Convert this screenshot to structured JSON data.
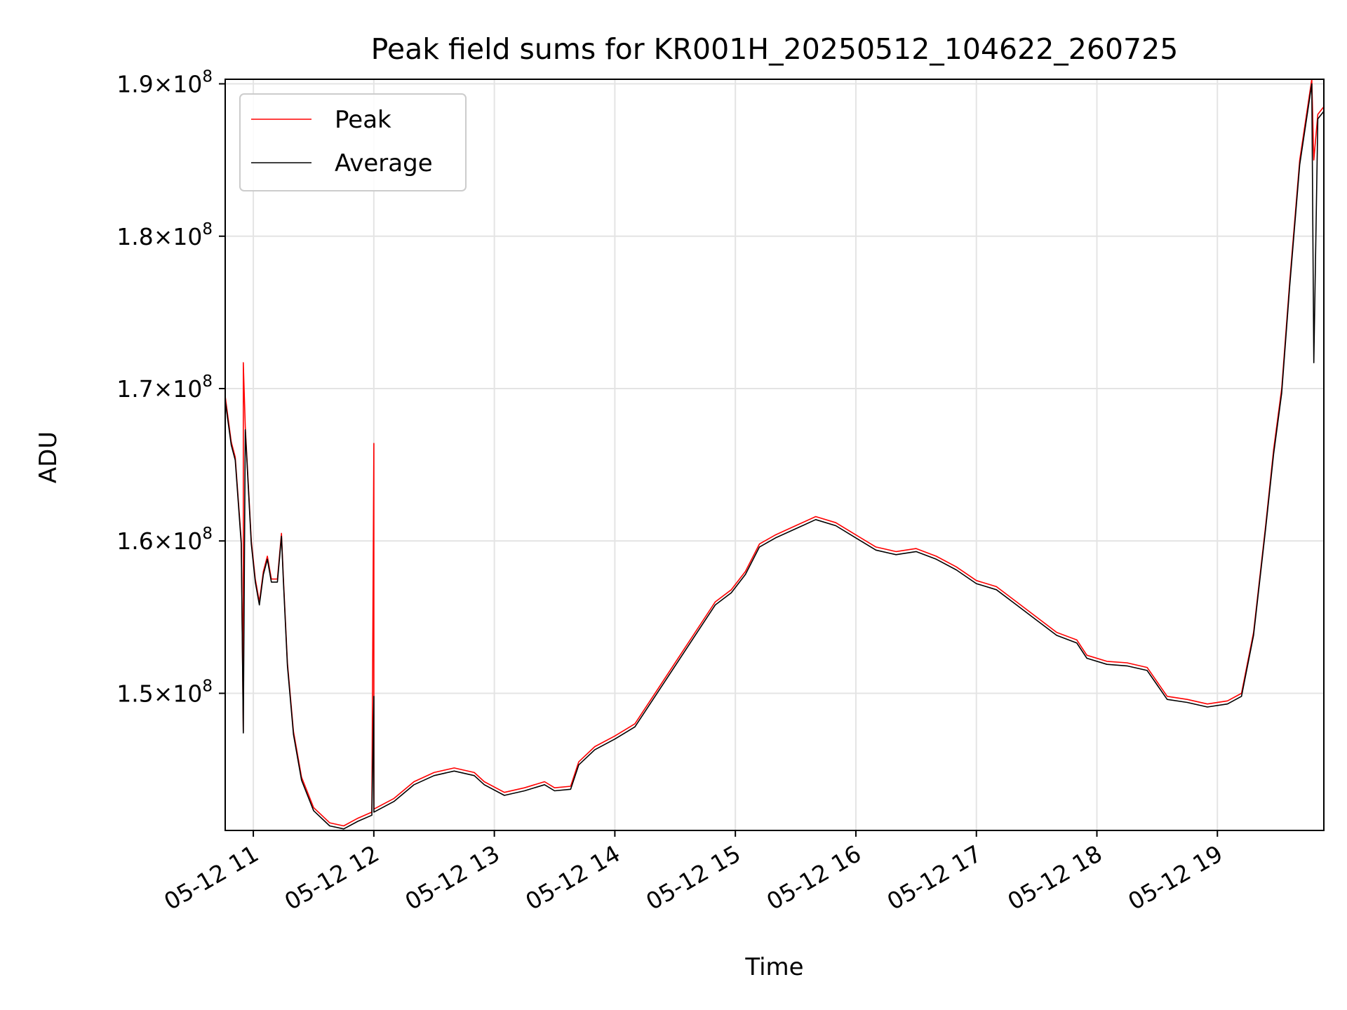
{
  "chart_data": {
    "type": "line",
    "title": "Peak field sums for KR001H_20250512_104622_260725",
    "xlabel": "Time",
    "ylabel": "ADU",
    "x_range": [
      "2025-05-12 10:46",
      "2025-05-12 19:53"
    ],
    "ylim": [
      141000000,
      190300000
    ],
    "grid": true,
    "legend_placement": "top-left",
    "x_ticks": [
      {
        "time": "2025-05-12 11:00",
        "label": "05-12 11"
      },
      {
        "time": "2025-05-12 12:00",
        "label": "05-12 12"
      },
      {
        "time": "2025-05-12 13:00",
        "label": "05-12 13"
      },
      {
        "time": "2025-05-12 14:00",
        "label": "05-12 14"
      },
      {
        "time": "2025-05-12 15:00",
        "label": "05-12 15"
      },
      {
        "time": "2025-05-12 16:00",
        "label": "05-12 16"
      },
      {
        "time": "2025-05-12 17:00",
        "label": "05-12 17"
      },
      {
        "time": "2025-05-12 18:00",
        "label": "05-12 18"
      },
      {
        "time": "2025-05-12 19:00",
        "label": "05-12 19"
      }
    ],
    "y_ticks": [
      {
        "value": 150000000,
        "mantissa": "1.5",
        "base": "×10",
        "exp": "8"
      },
      {
        "value": 160000000,
        "mantissa": "1.6",
        "base": "×10",
        "exp": "8"
      },
      {
        "value": 170000000,
        "mantissa": "1.7",
        "base": "×10",
        "exp": "8"
      },
      {
        "value": 180000000,
        "mantissa": "1.8",
        "base": "×10",
        "exp": "8"
      },
      {
        "value": 190000000,
        "mantissa": "1.9",
        "base": "×10",
        "exp": "8"
      }
    ],
    "series": [
      {
        "name": "Peak",
        "color": "#ff0000",
        "points": [
          [
            "2025-05-12 10:46",
            169500000
          ],
          [
            "2025-05-12 10:49",
            166500000
          ],
          [
            "2025-05-12 10:51",
            165500000
          ],
          [
            "2025-05-12 10:54",
            160000000
          ],
          [
            "2025-05-12 10:55",
            147500000
          ],
          [
            "2025-05-12 10:55",
            171700000
          ],
          [
            "2025-05-12 10:56",
            167500000
          ],
          [
            "2025-05-12 10:59",
            160000000
          ],
          [
            "2025-05-12 11:01",
            157500000
          ],
          [
            "2025-05-12 11:03",
            156000000
          ],
          [
            "2025-05-12 11:05",
            158000000
          ],
          [
            "2025-05-12 11:07",
            159000000
          ],
          [
            "2025-05-12 11:09",
            157500000
          ],
          [
            "2025-05-12 11:12",
            157500000
          ],
          [
            "2025-05-12 11:14",
            160500000
          ],
          [
            "2025-05-12 11:15",
            157500000
          ],
          [
            "2025-05-12 11:17",
            152000000
          ],
          [
            "2025-05-12 11:20",
            147500000
          ],
          [
            "2025-05-12 11:24",
            144500000
          ],
          [
            "2025-05-12 11:30",
            142500000
          ],
          [
            "2025-05-12 11:38",
            141500000
          ],
          [
            "2025-05-12 11:45",
            141300000
          ],
          [
            "2025-05-12 11:52",
            141800000
          ],
          [
            "2025-05-12 11:59",
            142200000
          ],
          [
            "2025-05-12 12:00",
            166400000
          ],
          [
            "2025-05-12 12:00",
            142400000
          ],
          [
            "2025-05-12 12:10",
            143100000
          ],
          [
            "2025-05-12 12:20",
            144200000
          ],
          [
            "2025-05-12 12:30",
            144800000
          ],
          [
            "2025-05-12 12:40",
            145100000
          ],
          [
            "2025-05-12 12:50",
            144800000
          ],
          [
            "2025-05-12 12:55",
            144200000
          ],
          [
            "2025-05-12 13:05",
            143500000
          ],
          [
            "2025-05-12 13:15",
            143800000
          ],
          [
            "2025-05-12 13:25",
            144200000
          ],
          [
            "2025-05-12 13:30",
            143800000
          ],
          [
            "2025-05-12 13:38",
            143900000
          ],
          [
            "2025-05-12 13:42",
            145500000
          ],
          [
            "2025-05-12 13:50",
            146500000
          ],
          [
            "2025-05-12 14:00",
            147200000
          ],
          [
            "2025-05-12 14:10",
            148000000
          ],
          [
            "2025-05-12 14:20",
            150000000
          ],
          [
            "2025-05-12 14:30",
            152000000
          ],
          [
            "2025-05-12 14:40",
            154000000
          ],
          [
            "2025-05-12 14:50",
            156000000
          ],
          [
            "2025-05-12 14:58",
            156800000
          ],
          [
            "2025-05-12 15:05",
            158000000
          ],
          [
            "2025-05-12 15:12",
            159800000
          ],
          [
            "2025-05-12 15:20",
            160400000
          ],
          [
            "2025-05-12 15:30",
            161000000
          ],
          [
            "2025-05-12 15:40",
            161600000
          ],
          [
            "2025-05-12 15:50",
            161200000
          ],
          [
            "2025-05-12 16:00",
            160400000
          ],
          [
            "2025-05-12 16:10",
            159600000
          ],
          [
            "2025-05-12 16:20",
            159300000
          ],
          [
            "2025-05-12 16:30",
            159500000
          ],
          [
            "2025-05-12 16:40",
            159000000
          ],
          [
            "2025-05-12 16:50",
            158300000
          ],
          [
            "2025-05-12 17:00",
            157400000
          ],
          [
            "2025-05-12 17:10",
            157000000
          ],
          [
            "2025-05-12 17:20",
            156000000
          ],
          [
            "2025-05-12 17:30",
            155000000
          ],
          [
            "2025-05-12 17:40",
            154000000
          ],
          [
            "2025-05-12 17:50",
            153500000
          ],
          [
            "2025-05-12 17:55",
            152500000
          ],
          [
            "2025-05-12 18:05",
            152100000
          ],
          [
            "2025-05-12 18:15",
            152000000
          ],
          [
            "2025-05-12 18:25",
            151700000
          ],
          [
            "2025-05-12 18:35",
            149800000
          ],
          [
            "2025-05-12 18:45",
            149600000
          ],
          [
            "2025-05-12 18:55",
            149300000
          ],
          [
            "2025-05-12 19:05",
            149500000
          ],
          [
            "2025-05-12 19:12",
            150000000
          ],
          [
            "2025-05-12 19:18",
            154000000
          ],
          [
            "2025-05-12 19:24",
            161000000
          ],
          [
            "2025-05-12 19:28",
            166000000
          ],
          [
            "2025-05-12 19:32",
            170000000
          ],
          [
            "2025-05-12 19:36",
            177000000
          ],
          [
            "2025-05-12 19:41",
            185000000
          ],
          [
            "2025-05-12 19:47",
            190300000
          ],
          [
            "2025-05-12 19:48",
            185000000
          ],
          [
            "2025-05-12 19:50",
            188000000
          ],
          [
            "2025-05-12 19:53",
            188500000
          ]
        ]
      },
      {
        "name": "Average",
        "color": "#000000",
        "points": [
          [
            "2025-05-12 10:46",
            169200000
          ],
          [
            "2025-05-12 10:49",
            166300000
          ],
          [
            "2025-05-12 10:51",
            165300000
          ],
          [
            "2025-05-12 10:54",
            159800000
          ],
          [
            "2025-05-12 10:55",
            147400000
          ],
          [
            "2025-05-12 10:56",
            167300000
          ],
          [
            "2025-05-12 10:59",
            159800000
          ],
          [
            "2025-05-12 11:01",
            157300000
          ],
          [
            "2025-05-12 11:03",
            155800000
          ],
          [
            "2025-05-12 11:05",
            157800000
          ],
          [
            "2025-05-12 11:07",
            158800000
          ],
          [
            "2025-05-12 11:09",
            157300000
          ],
          [
            "2025-05-12 11:12",
            157300000
          ],
          [
            "2025-05-12 11:14",
            160300000
          ],
          [
            "2025-05-12 11:15",
            157300000
          ],
          [
            "2025-05-12 11:17",
            151800000
          ],
          [
            "2025-05-12 11:20",
            147300000
          ],
          [
            "2025-05-12 11:24",
            144300000
          ],
          [
            "2025-05-12 11:30",
            142300000
          ],
          [
            "2025-05-12 11:38",
            141300000
          ],
          [
            "2025-05-12 11:45",
            141100000
          ],
          [
            "2025-05-12 11:52",
            141600000
          ],
          [
            "2025-05-12 11:59",
            142000000
          ],
          [
            "2025-05-12 12:00",
            149800000
          ],
          [
            "2025-05-12 12:00",
            142200000
          ],
          [
            "2025-05-12 12:10",
            142900000
          ],
          [
            "2025-05-12 12:20",
            144000000
          ],
          [
            "2025-05-12 12:30",
            144600000
          ],
          [
            "2025-05-12 12:40",
            144900000
          ],
          [
            "2025-05-12 12:50",
            144600000
          ],
          [
            "2025-05-12 12:55",
            144000000
          ],
          [
            "2025-05-12 13:05",
            143300000
          ],
          [
            "2025-05-12 13:15",
            143600000
          ],
          [
            "2025-05-12 13:25",
            144000000
          ],
          [
            "2025-05-12 13:30",
            143600000
          ],
          [
            "2025-05-12 13:38",
            143700000
          ],
          [
            "2025-05-12 13:42",
            145300000
          ],
          [
            "2025-05-12 13:50",
            146300000
          ],
          [
            "2025-05-12 14:00",
            147000000
          ],
          [
            "2025-05-12 14:10",
            147800000
          ],
          [
            "2025-05-12 14:20",
            149800000
          ],
          [
            "2025-05-12 14:30",
            151800000
          ],
          [
            "2025-05-12 14:40",
            153800000
          ],
          [
            "2025-05-12 14:50",
            155800000
          ],
          [
            "2025-05-12 14:58",
            156600000
          ],
          [
            "2025-05-12 15:05",
            157800000
          ],
          [
            "2025-05-12 15:12",
            159600000
          ],
          [
            "2025-05-12 15:20",
            160200000
          ],
          [
            "2025-05-12 15:30",
            160800000
          ],
          [
            "2025-05-12 15:40",
            161400000
          ],
          [
            "2025-05-12 15:50",
            161000000
          ],
          [
            "2025-05-12 16:00",
            160200000
          ],
          [
            "2025-05-12 16:10",
            159400000
          ],
          [
            "2025-05-12 16:20",
            159100000
          ],
          [
            "2025-05-12 16:30",
            159300000
          ],
          [
            "2025-05-12 16:40",
            158800000
          ],
          [
            "2025-05-12 16:50",
            158100000
          ],
          [
            "2025-05-12 17:00",
            157200000
          ],
          [
            "2025-05-12 17:10",
            156800000
          ],
          [
            "2025-05-12 17:20",
            155800000
          ],
          [
            "2025-05-12 17:30",
            154800000
          ],
          [
            "2025-05-12 17:40",
            153800000
          ],
          [
            "2025-05-12 17:50",
            153300000
          ],
          [
            "2025-05-12 17:55",
            152300000
          ],
          [
            "2025-05-12 18:05",
            151900000
          ],
          [
            "2025-05-12 18:15",
            151800000
          ],
          [
            "2025-05-12 18:25",
            151500000
          ],
          [
            "2025-05-12 18:35",
            149600000
          ],
          [
            "2025-05-12 18:45",
            149400000
          ],
          [
            "2025-05-12 18:55",
            149100000
          ],
          [
            "2025-05-12 19:05",
            149300000
          ],
          [
            "2025-05-12 19:12",
            149800000
          ],
          [
            "2025-05-12 19:18",
            153800000
          ],
          [
            "2025-05-12 19:24",
            160800000
          ],
          [
            "2025-05-12 19:28",
            165700000
          ],
          [
            "2025-05-12 19:32",
            169700000
          ],
          [
            "2025-05-12 19:36",
            176700000
          ],
          [
            "2025-05-12 19:41",
            184700000
          ],
          [
            "2025-05-12 19:47",
            190000000
          ],
          [
            "2025-05-12 19:48",
            171700000
          ],
          [
            "2025-05-12 19:50",
            187700000
          ],
          [
            "2025-05-12 19:53",
            188200000
          ]
        ]
      }
    ]
  }
}
